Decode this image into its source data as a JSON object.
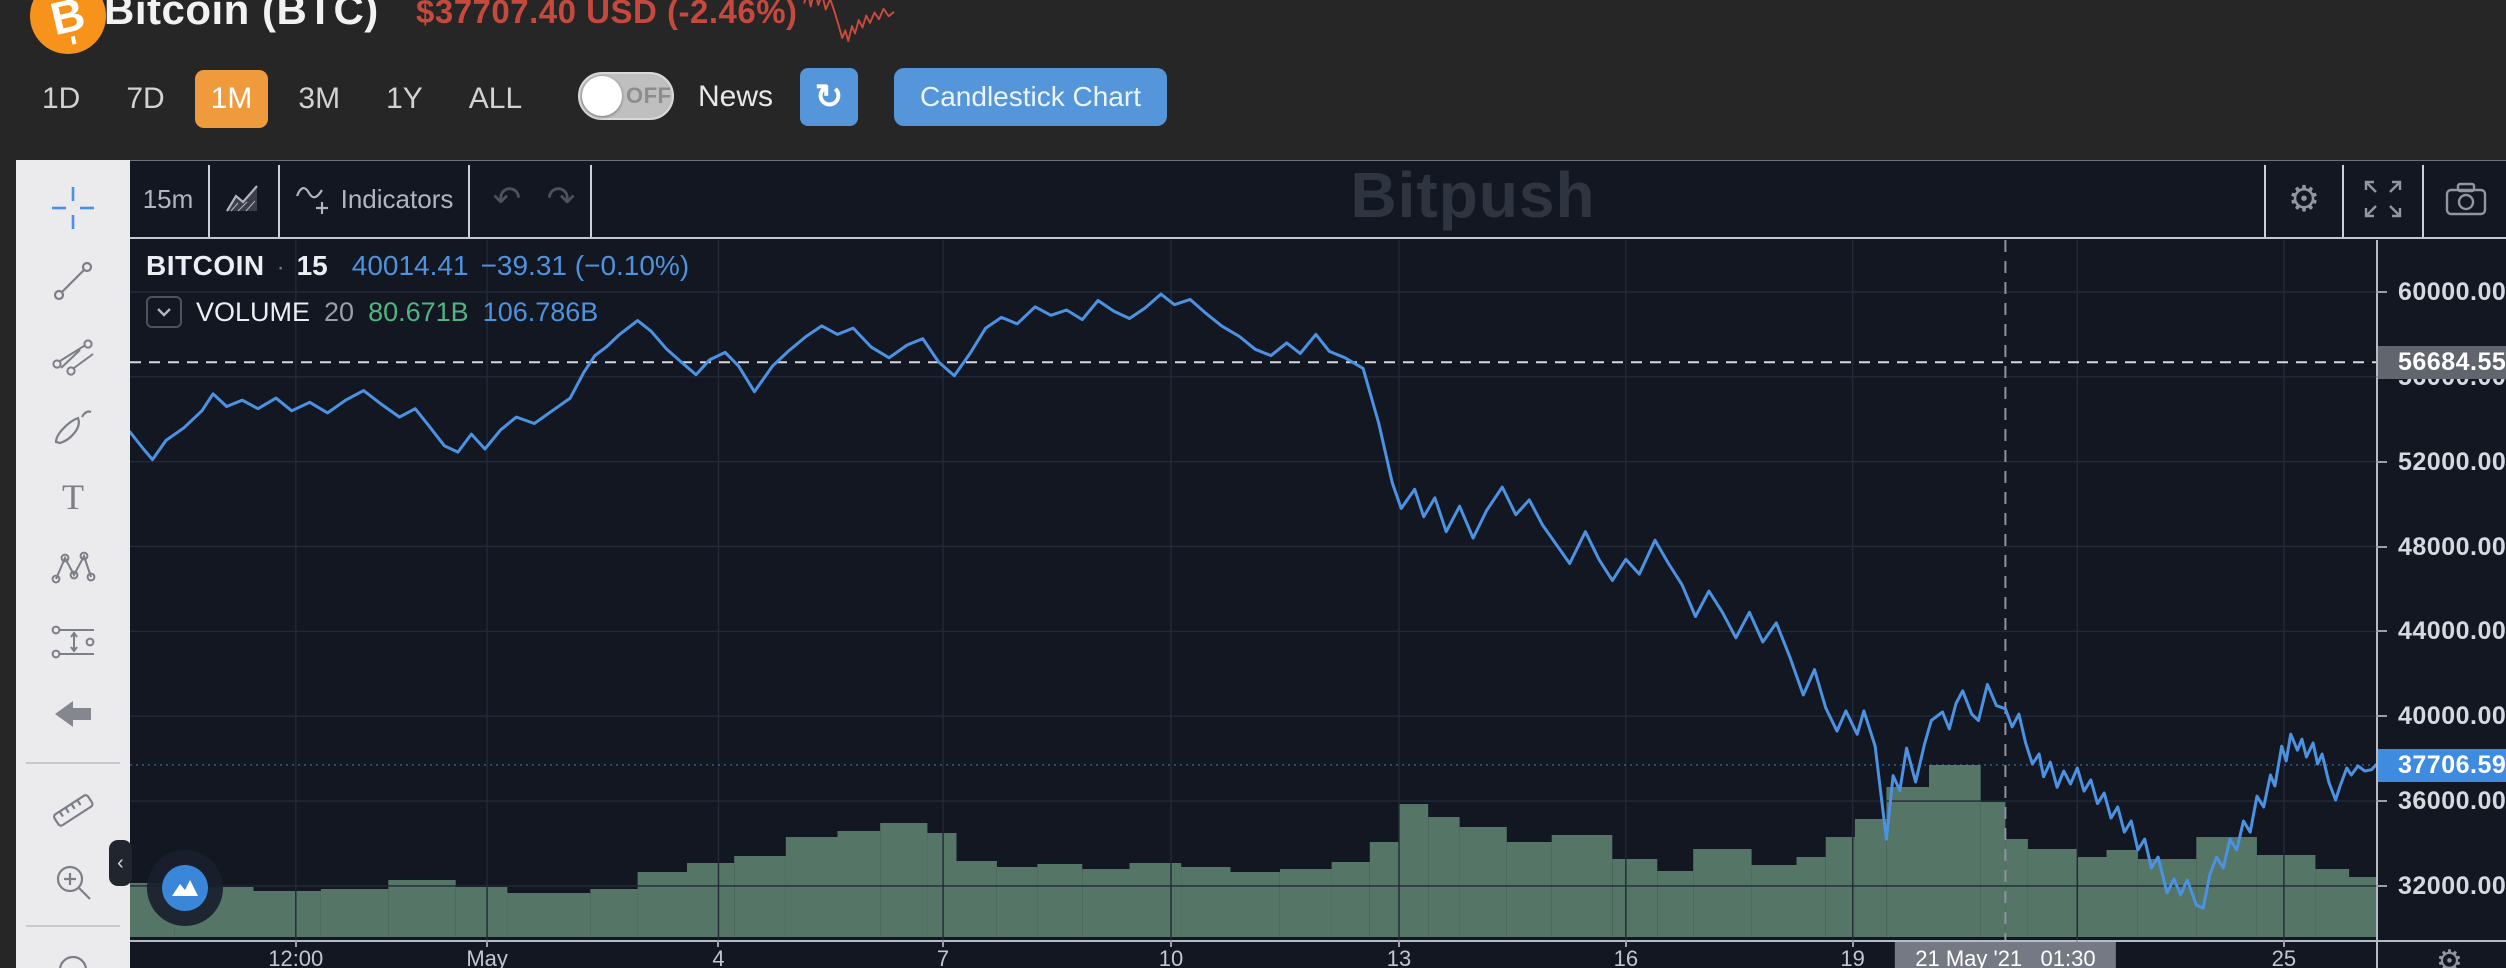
{
  "header": {
    "coin_name": "Bitcoin (BTC)",
    "price_line": "$37707.40 USD (-2.46%)",
    "ranges": [
      "1D",
      "7D",
      "1M",
      "3M",
      "1Y",
      "ALL"
    ],
    "active_range": "1M",
    "toggle_label": "OFF",
    "news_label": "News",
    "candlestick_button": "Candlestick Chart",
    "accent_orange": "#ef9a3d",
    "accent_blue": "#5596da",
    "price_color": "#c7493d",
    "sparkline_color": "#cf4a3e",
    "sparkline_points": [
      [
        0,
        26
      ],
      [
        5,
        10
      ],
      [
        9,
        30
      ],
      [
        14,
        6
      ],
      [
        19,
        28
      ],
      [
        24,
        14
      ],
      [
        29,
        34
      ],
      [
        35,
        20
      ],
      [
        41,
        38
      ],
      [
        47,
        58
      ],
      [
        51,
        72
      ],
      [
        55,
        62
      ],
      [
        59,
        76
      ],
      [
        64,
        56
      ],
      [
        68,
        66
      ],
      [
        73,
        48
      ],
      [
        78,
        58
      ],
      [
        83,
        42
      ],
      [
        88,
        52
      ],
      [
        94,
        38
      ],
      [
        100,
        47
      ],
      [
        106,
        33
      ],
      [
        113,
        43
      ],
      [
        120,
        37
      ]
    ]
  },
  "chart_toolbar": {
    "interval": "15m",
    "indicators_label": "Indicators",
    "watermark": "Bitpush"
  },
  "legend": {
    "symbol": "BITCOIN",
    "separator": "·",
    "interval": "15",
    "price": "40014.41",
    "change": "−39.31 (−0.10%)",
    "volume_label": "VOLUME",
    "volume_length": "20",
    "volume_value": "80.671B",
    "volume_value2": "106.786B"
  },
  "left_toolbar": {
    "tools": [
      "crosshair",
      "trend-line",
      "pitchfork",
      "brush",
      "text",
      "xabcd-pattern",
      "projection",
      "arrow-marker",
      "measure",
      "zoom-in",
      "magnet"
    ]
  },
  "colors": {
    "bg": "#131722",
    "line": "#4c92e2",
    "volume": "#597a6a",
    "grid": "#232938",
    "dashed": "#d6d9e1",
    "crosshair": "#8d93a0",
    "axis_text": "#d6d9e0",
    "last_badge": "#3f8be0",
    "level_badge": "#61656e",
    "time_badge": "#747983"
  },
  "chart_data": {
    "type": "line",
    "title": "BITCOIN 15-minute line chart with VOLUME 20",
    "legend_position": "top-left",
    "grid": true,
    "x_axis": {
      "gridlines_t": [
        0.0738,
        0.159,
        0.262,
        0.362,
        0.4635,
        0.565,
        0.666,
        0.767,
        0.867,
        0.959
      ],
      "labels": [
        {
          "t": 0.0738,
          "text": "12:00"
        },
        {
          "t": 0.159,
          "text": "May"
        },
        {
          "t": 0.262,
          "text": "4"
        },
        {
          "t": 0.362,
          "text": "7"
        },
        {
          "t": 0.4635,
          "text": "10"
        },
        {
          "t": 0.565,
          "text": "13"
        },
        {
          "t": 0.666,
          "text": "16"
        },
        {
          "t": 0.767,
          "text": "19"
        },
        {
          "t": 0.959,
          "text": "25"
        }
      ],
      "crosshair": {
        "t": 0.835,
        "label": "21 May '21   01:30"
      }
    },
    "y_axis": {
      "ticks": [
        60000,
        56000,
        52000,
        48000,
        44000,
        40000,
        36000,
        32000
      ],
      "ylim": [
        29452,
        62451
      ],
      "dashed_level": 56684.55,
      "last_price": 37706.59
    },
    "series": {
      "price": [
        [
          0.0,
          53400
        ],
        [
          0.006,
          52600
        ],
        [
          0.01,
          52100
        ],
        [
          0.016,
          53000
        ],
        [
          0.024,
          53600
        ],
        [
          0.032,
          54400
        ],
        [
          0.037,
          55200
        ],
        [
          0.043,
          54600
        ],
        [
          0.05,
          54900
        ],
        [
          0.057,
          54500
        ],
        [
          0.065,
          55000
        ],
        [
          0.072,
          54400
        ],
        [
          0.08,
          54800
        ],
        [
          0.088,
          54300
        ],
        [
          0.096,
          54900
        ],
        [
          0.104,
          55350
        ],
        [
          0.112,
          54700
        ],
        [
          0.12,
          54100
        ],
        [
          0.127,
          54500
        ],
        [
          0.133,
          53700
        ],
        [
          0.14,
          52750
        ],
        [
          0.146,
          52450
        ],
        [
          0.152,
          53300
        ],
        [
          0.158,
          52600
        ],
        [
          0.165,
          53500
        ],
        [
          0.172,
          54100
        ],
        [
          0.18,
          53800
        ],
        [
          0.188,
          54400
        ],
        [
          0.196,
          55000
        ],
        [
          0.202,
          56200
        ],
        [
          0.207,
          57000
        ],
        [
          0.212,
          57400
        ],
        [
          0.218,
          58000
        ],
        [
          0.226,
          58650
        ],
        [
          0.232,
          58150
        ],
        [
          0.239,
          57300
        ],
        [
          0.246,
          56650
        ],
        [
          0.252,
          56100
        ],
        [
          0.258,
          56800
        ],
        [
          0.265,
          57150
        ],
        [
          0.271,
          56500
        ],
        [
          0.278,
          55300
        ],
        [
          0.286,
          56500
        ],
        [
          0.293,
          57200
        ],
        [
          0.301,
          57900
        ],
        [
          0.308,
          58400
        ],
        [
          0.315,
          58000
        ],
        [
          0.322,
          58300
        ],
        [
          0.33,
          57400
        ],
        [
          0.338,
          56900
        ],
        [
          0.346,
          57500
        ],
        [
          0.353,
          57800
        ],
        [
          0.36,
          56700
        ],
        [
          0.367,
          56050
        ],
        [
          0.374,
          57100
        ],
        [
          0.381,
          58300
        ],
        [
          0.388,
          58800
        ],
        [
          0.395,
          58500
        ],
        [
          0.403,
          59300
        ],
        [
          0.41,
          58900
        ],
        [
          0.417,
          59150
        ],
        [
          0.424,
          58700
        ],
        [
          0.431,
          59600
        ],
        [
          0.438,
          59100
        ],
        [
          0.445,
          58750
        ],
        [
          0.452,
          59250
        ],
        [
          0.459,
          59900
        ],
        [
          0.465,
          59400
        ],
        [
          0.472,
          59650
        ],
        [
          0.479,
          59000
        ],
        [
          0.486,
          58400
        ],
        [
          0.494,
          57900
        ],
        [
          0.501,
          57300
        ],
        [
          0.508,
          57000
        ],
        [
          0.515,
          57600
        ],
        [
          0.521,
          57100
        ],
        [
          0.528,
          58000
        ],
        [
          0.534,
          57200
        ],
        [
          0.541,
          56900
        ],
        [
          0.549,
          56400
        ],
        [
          0.556,
          53800
        ],
        [
          0.562,
          51000
        ],
        [
          0.566,
          49800
        ],
        [
          0.572,
          50700
        ],
        [
          0.576,
          49400
        ],
        [
          0.581,
          50300
        ],
        [
          0.586,
          48700
        ],
        [
          0.592,
          49900
        ],
        [
          0.598,
          48400
        ],
        [
          0.604,
          49700
        ],
        [
          0.611,
          50800
        ],
        [
          0.617,
          49500
        ],
        [
          0.623,
          50200
        ],
        [
          0.629,
          49000
        ],
        [
          0.635,
          48100
        ],
        [
          0.641,
          47200
        ],
        [
          0.648,
          48700
        ],
        [
          0.654,
          47400
        ],
        [
          0.66,
          46400
        ],
        [
          0.666,
          47400
        ],
        [
          0.672,
          46700
        ],
        [
          0.679,
          48300
        ],
        [
          0.685,
          47200
        ],
        [
          0.691,
          46200
        ],
        [
          0.697,
          44700
        ],
        [
          0.703,
          45900
        ],
        [
          0.709,
          44900
        ],
        [
          0.715,
          43700
        ],
        [
          0.721,
          44900
        ],
        [
          0.727,
          43500
        ],
        [
          0.733,
          44400
        ],
        [
          0.739,
          42800
        ],
        [
          0.745,
          41000
        ],
        [
          0.75,
          42200
        ],
        [
          0.755,
          40400
        ],
        [
          0.76,
          39300
        ],
        [
          0.764,
          40250
        ],
        [
          0.769,
          39150
        ],
        [
          0.772,
          40250
        ],
        [
          0.777,
          38600
        ],
        [
          0.782,
          34200
        ],
        [
          0.785,
          37200
        ],
        [
          0.788,
          36500
        ],
        [
          0.791,
          38500
        ],
        [
          0.795,
          36900
        ],
        [
          0.799,
          38700
        ],
        [
          0.802,
          39800
        ],
        [
          0.807,
          40200
        ],
        [
          0.81,
          39400
        ],
        [
          0.813,
          40600
        ],
        [
          0.816,
          41200
        ],
        [
          0.82,
          40100
        ],
        [
          0.823,
          39800
        ],
        [
          0.827,
          41500
        ],
        [
          0.831,
          40500
        ],
        [
          0.835,
          40350
        ],
        [
          0.838,
          39500
        ],
        [
          0.841,
          40100
        ],
        [
          0.844,
          38750
        ],
        [
          0.847,
          37750
        ],
        [
          0.85,
          38220
        ],
        [
          0.852,
          37150
        ],
        [
          0.855,
          37840
        ],
        [
          0.858,
          36650
        ],
        [
          0.861,
          37420
        ],
        [
          0.864,
          36800
        ],
        [
          0.867,
          37560
        ],
        [
          0.87,
          36470
        ],
        [
          0.873,
          37000
        ],
        [
          0.876,
          35880
        ],
        [
          0.879,
          36380
        ],
        [
          0.882,
          35200
        ],
        [
          0.885,
          35720
        ],
        [
          0.888,
          34540
        ],
        [
          0.891,
          35060
        ],
        [
          0.894,
          33700
        ],
        [
          0.897,
          34210
        ],
        [
          0.9,
          32850
        ],
        [
          0.903,
          33360
        ],
        [
          0.907,
          31670
        ],
        [
          0.91,
          32330
        ],
        [
          0.913,
          31580
        ],
        [
          0.916,
          32280
        ],
        [
          0.92,
          31100
        ],
        [
          0.923,
          30950
        ],
        [
          0.926,
          32520
        ],
        [
          0.929,
          33360
        ],
        [
          0.932,
          32850
        ],
        [
          0.935,
          34210
        ],
        [
          0.938,
          33700
        ],
        [
          0.941,
          35060
        ],
        [
          0.944,
          34540
        ],
        [
          0.947,
          36230
        ],
        [
          0.95,
          35720
        ],
        [
          0.953,
          37230
        ],
        [
          0.955,
          36710
        ],
        [
          0.958,
          38590
        ],
        [
          0.96,
          37890
        ],
        [
          0.962,
          39160
        ],
        [
          0.965,
          38400
        ],
        [
          0.967,
          38920
        ],
        [
          0.969,
          38080
        ],
        [
          0.972,
          38740
        ],
        [
          0.974,
          37750
        ],
        [
          0.976,
          38220
        ],
        [
          0.979,
          36900
        ],
        [
          0.982,
          36050
        ],
        [
          0.984,
          36710
        ],
        [
          0.987,
          37560
        ],
        [
          0.989,
          37230
        ],
        [
          0.992,
          37660
        ],
        [
          0.995,
          37420
        ],
        [
          0.998,
          37480
        ],
        [
          1.0,
          37706.59
        ]
      ]
    },
    "volume_segments": [
      [
        0.0,
        0.02,
        54
      ],
      [
        0.02,
        0.055,
        50
      ],
      [
        0.055,
        0.085,
        46
      ],
      [
        0.085,
        0.115,
        48
      ],
      [
        0.115,
        0.145,
        57
      ],
      [
        0.145,
        0.168,
        50
      ],
      [
        0.168,
        0.205,
        44
      ],
      [
        0.205,
        0.226,
        48
      ],
      [
        0.226,
        0.248,
        65
      ],
      [
        0.248,
        0.269,
        74
      ],
      [
        0.269,
        0.292,
        81
      ],
      [
        0.292,
        0.315,
        100
      ],
      [
        0.315,
        0.334,
        106
      ],
      [
        0.334,
        0.355,
        114
      ],
      [
        0.355,
        0.368,
        104
      ],
      [
        0.368,
        0.386,
        76
      ],
      [
        0.386,
        0.404,
        70
      ],
      [
        0.404,
        0.424,
        73
      ],
      [
        0.424,
        0.445,
        68
      ],
      [
        0.445,
        0.468,
        74
      ],
      [
        0.468,
        0.49,
        70
      ],
      [
        0.49,
        0.512,
        65
      ],
      [
        0.512,
        0.535,
        68
      ],
      [
        0.535,
        0.552,
        75
      ],
      [
        0.552,
        0.565,
        95
      ],
      [
        0.565,
        0.578,
        133
      ],
      [
        0.578,
        0.592,
        120
      ],
      [
        0.592,
        0.613,
        110
      ],
      [
        0.613,
        0.633,
        95
      ],
      [
        0.633,
        0.66,
        102
      ],
      [
        0.66,
        0.68,
        78
      ],
      [
        0.68,
        0.696,
        66
      ],
      [
        0.696,
        0.722,
        88
      ],
      [
        0.722,
        0.742,
        72
      ],
      [
        0.742,
        0.755,
        80
      ],
      [
        0.755,
        0.768,
        100
      ],
      [
        0.768,
        0.782,
        118
      ],
      [
        0.782,
        0.801,
        150
      ],
      [
        0.801,
        0.824,
        172
      ],
      [
        0.824,
        0.835,
        135
      ],
      [
        0.835,
        0.845,
        98
      ],
      [
        0.845,
        0.867,
        88
      ],
      [
        0.867,
        0.88,
        80
      ],
      [
        0.88,
        0.894,
        87
      ],
      [
        0.894,
        0.92,
        78
      ],
      [
        0.92,
        0.947,
        100
      ],
      [
        0.947,
        0.973,
        82
      ],
      [
        0.973,
        0.988,
        68
      ],
      [
        0.988,
        1.0,
        60
      ]
    ]
  }
}
